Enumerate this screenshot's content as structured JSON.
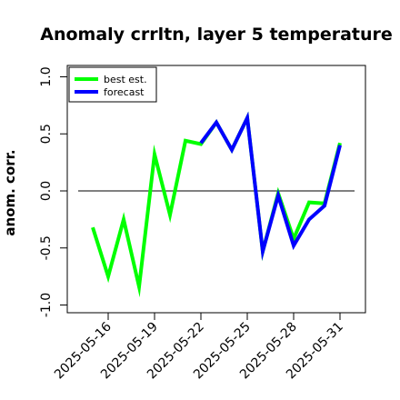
{
  "chart_data": {
    "type": "line",
    "title": "Anomaly crrltn, layer 5 temperature",
    "ylabel": "anom. corr.",
    "xlabel": "",
    "ylim": [
      -1.05,
      1.1
    ],
    "y_ticks": [
      "-1.0",
      "-0.5",
      "0.0",
      "0.5",
      "1.0"
    ],
    "y_tick_values": [
      -1.0,
      -0.5,
      0.0,
      0.5,
      1.0
    ],
    "x_ticks": [
      "2025-05-16",
      "2025-05-19",
      "2025-05-22",
      "2025-05-25",
      "2025-05-28",
      "2025-05-31"
    ],
    "x_tick_colors": [
      "#000000",
      "#000000",
      "#228b22",
      "#000000",
      "#000000",
      "#000000"
    ],
    "x_dates": [
      "2025-05-15",
      "2025-05-16",
      "2025-05-17",
      "2025-05-18",
      "2025-05-19",
      "2025-05-20",
      "2025-05-21",
      "2025-05-22",
      "2025-05-23",
      "2025-05-24",
      "2025-05-25",
      "2025-05-26",
      "2025-05-27",
      "2025-05-28",
      "2025-05-29",
      "2025-05-30",
      "2025-05-31"
    ],
    "reference_line": 0.0,
    "grid": false,
    "legend_position": "top-left",
    "series": [
      {
        "name": "best est.",
        "color": "#00ff00",
        "values": [
          -0.32,
          -0.75,
          -0.25,
          -0.84,
          0.32,
          -0.21,
          0.44,
          0.41,
          0.6,
          0.36,
          0.64,
          -0.53,
          -0.02,
          -0.42,
          -0.1,
          -0.11,
          0.42
        ]
      },
      {
        "name": "forecast",
        "color": "#0000ff",
        "values": [
          null,
          null,
          null,
          null,
          null,
          null,
          null,
          0.42,
          0.6,
          0.36,
          0.64,
          -0.53,
          -0.04,
          -0.48,
          -0.25,
          -0.13,
          0.4
        ]
      }
    ]
  }
}
